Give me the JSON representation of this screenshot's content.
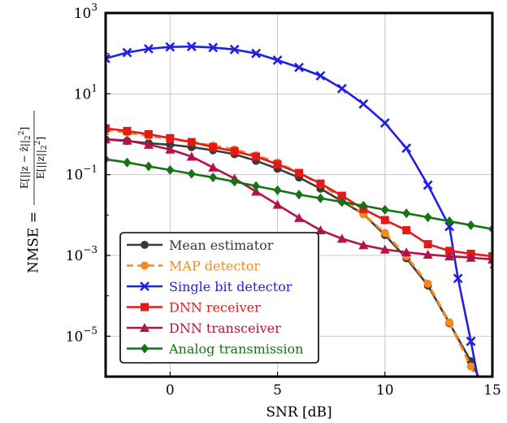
{
  "chart_data": {
    "type": "line",
    "title": "",
    "xlabel": "SNR [dB]",
    "ylabel": {
      "lhs": "NMSE =",
      "num_prefix": "E",
      "num": "[||z − ẑ||",
      "den_prefix": "E",
      "den": "[||z||",
      "sub": "2",
      "sup": "2",
      "close": "]"
    },
    "xlim": [
      -3,
      15
    ],
    "ylim_log10": [
      -6,
      3
    ],
    "yscale": "log",
    "grid": true,
    "legend_position": "lower-left",
    "x_ticks": [
      {
        "value": 0,
        "label": "0"
      },
      {
        "value": 5,
        "label": "5"
      },
      {
        "value": 10,
        "label": "10"
      },
      {
        "value": 15,
        "label": "15"
      }
    ],
    "y_ticks": [
      {
        "exp": 3,
        "base": "10",
        "sup": "3"
      },
      {
        "exp": 1,
        "base": "10",
        "sup": "1"
      },
      {
        "exp": -1,
        "base": "10",
        "sup": "−1"
      },
      {
        "exp": -3,
        "base": "10",
        "sup": "−3"
      },
      {
        "exp": -5,
        "base": "10",
        "sup": "−5"
      }
    ],
    "x": [
      -3,
      -2,
      -1,
      0,
      1,
      2,
      3,
      4,
      5,
      6,
      7,
      8,
      9,
      10,
      11,
      12,
      13,
      14,
      15
    ],
    "series": [
      {
        "name": "Mean estimator",
        "color": "#3a3a3a",
        "marker": "circle",
        "dash": false,
        "values": [
          0.74,
          0.68,
          0.6,
          0.55,
          0.48,
          0.4,
          0.32,
          0.22,
          0.14,
          0.085,
          0.045,
          0.022,
          0.0105,
          0.0032,
          0.00085,
          0.00018,
          2.1e-05,
          2.4e-06,
          2e-07
        ]
      },
      {
        "name": "MAP detector",
        "color": "#f5881f",
        "marker": "circle",
        "dash": true,
        "values": [
          1.3,
          1.1,
          0.9,
          0.78,
          0.64,
          0.52,
          0.42,
          0.3,
          0.2,
          0.11,
          0.058,
          0.026,
          0.0105,
          0.0036,
          0.00095,
          0.0002,
          2.2e-05,
          1.8e-06,
          1.5e-07
        ]
      },
      {
        "name": "Single bit detector",
        "color": "#1f1fe6",
        "marker": "x",
        "dash": false,
        "values": [
          75,
          105,
          130,
          145,
          148,
          140,
          125,
          100,
          68,
          45,
          28,
          13.5,
          5.6,
          1.9,
          0.45,
          0.055,
          0.0052,
          0.00027,
          7.5e-06,
          8e-08
        ],
        "x": [
          -3,
          -2,
          -1,
          0,
          1,
          2,
          3,
          4,
          5,
          6,
          7,
          8,
          9,
          10,
          11,
          12,
          13,
          13.4,
          14,
          14.7
        ]
      },
      {
        "name": "DNN receiver",
        "color": "#e61919",
        "marker": "square",
        "dash": false,
        "values": [
          1.4,
          1.2,
          1.0,
          0.8,
          0.64,
          0.48,
          0.38,
          0.28,
          0.18,
          0.11,
          0.06,
          0.03,
          0.014,
          0.0075,
          0.0042,
          0.0019,
          0.0013,
          0.0011,
          0.00095,
          0.00075
        ],
        "x": [
          -3,
          -2,
          -1,
          0,
          1,
          2,
          3,
          4,
          5,
          6,
          7,
          8,
          9,
          10,
          11,
          12,
          13,
          14,
          15,
          15.1
        ]
      },
      {
        "name": "DNN transceiver",
        "color": "#b3134a",
        "marker": "triangle",
        "dash": false,
        "values": [
          0.75,
          0.7,
          0.55,
          0.42,
          0.28,
          0.15,
          0.08,
          0.038,
          0.018,
          0.0085,
          0.0042,
          0.0026,
          0.0018,
          0.0014,
          0.0012,
          0.00105,
          0.00095,
          0.00088,
          0.0008,
          0.0006
        ],
        "x": [
          -3,
          -2,
          -1,
          0,
          1,
          2,
          3,
          4,
          5,
          6,
          7,
          8,
          9,
          10,
          11,
          12,
          13,
          14,
          15,
          15.1
        ]
      },
      {
        "name": "Analog transmission",
        "color": "#147314",
        "marker": "diamond",
        "dash": false,
        "values": [
          0.24,
          0.2,
          0.16,
          0.13,
          0.105,
          0.085,
          0.067,
          0.052,
          0.041,
          0.032,
          0.026,
          0.021,
          0.017,
          0.0135,
          0.011,
          0.0088,
          0.007,
          0.0056,
          0.0045,
          0.0042
        ],
        "x": [
          -3,
          -2,
          -1,
          0,
          1,
          2,
          3,
          4,
          5,
          6,
          7,
          8,
          9,
          10,
          11,
          12,
          13,
          14,
          15,
          15.1
        ]
      }
    ]
  }
}
